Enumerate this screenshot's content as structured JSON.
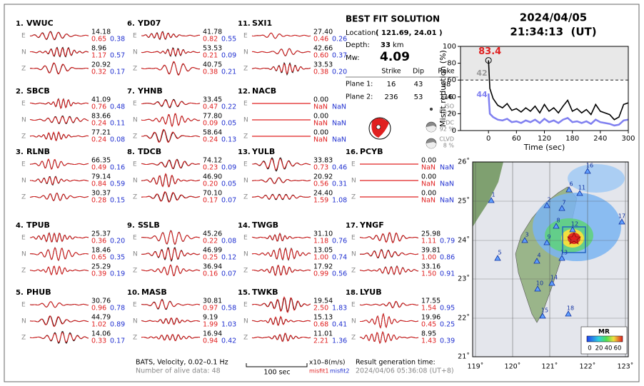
{
  "stations": [
    {
      "number": "1.",
      "name": "VWUC",
      "components": [
        {
          "comp": "E",
          "amp": "14.18",
          "misfit1": "0.65",
          "misfit2": "0.38"
        },
        {
          "comp": "N",
          "amp": "8.96",
          "misfit1": "1.17",
          "misfit2": "0.57"
        },
        {
          "comp": "Z",
          "amp": "20.92",
          "misfit1": "0.32",
          "misfit2": "0.17"
        }
      ]
    },
    {
      "number": "2.",
      "name": "SBCB",
      "components": [
        {
          "comp": "E",
          "amp": "41.09",
          "misfit1": "0.76",
          "misfit2": "0.48"
        },
        {
          "comp": "N",
          "amp": "83.66",
          "misfit1": "0.24",
          "misfit2": "0.11"
        },
        {
          "comp": "Z",
          "amp": "77.21",
          "misfit1": "0.24",
          "misfit2": "0.08"
        }
      ]
    },
    {
      "number": "3.",
      "name": "RLNB",
      "components": [
        {
          "comp": "E",
          "amp": "66.35",
          "misfit1": "0.49",
          "misfit2": "0.16"
        },
        {
          "comp": "N",
          "amp": "79.14",
          "misfit1": "0.84",
          "misfit2": "0.59"
        },
        {
          "comp": "Z",
          "amp": "30.37",
          "misfit1": "0.28",
          "misfit2": "0.15"
        }
      ]
    },
    {
      "number": "4.",
      "name": "TPUB",
      "components": [
        {
          "comp": "E",
          "amp": "25.37",
          "misfit1": "0.36",
          "misfit2": "0.20"
        },
        {
          "comp": "N",
          "amp": "18.46",
          "misfit1": "0.65",
          "misfit2": "0.35"
        },
        {
          "comp": "Z",
          "amp": "25.29",
          "misfit1": "0.39",
          "misfit2": "0.19"
        }
      ]
    },
    {
      "number": "5.",
      "name": "PHUB",
      "components": [
        {
          "comp": "E",
          "amp": "30.76",
          "misfit1": "0.96",
          "misfit2": "0.78"
        },
        {
          "comp": "N",
          "amp": "44.79",
          "misfit1": "1.02",
          "misfit2": "0.89"
        },
        {
          "comp": "Z",
          "amp": "14.06",
          "misfit1": "0.33",
          "misfit2": "0.17"
        }
      ]
    },
    {
      "number": "6.",
      "name": "YD07",
      "components": [
        {
          "comp": "E",
          "amp": "41.78",
          "misfit1": "0.82",
          "misfit2": "0.55"
        },
        {
          "comp": "N",
          "amp": "53.53",
          "misfit1": "0.21",
          "misfit2": "0.09"
        },
        {
          "comp": "Z",
          "amp": "40.75",
          "misfit1": "0.38",
          "misfit2": "0.21"
        }
      ]
    },
    {
      "number": "7.",
      "name": "YHNB",
      "components": [
        {
          "comp": "E",
          "amp": "33.45",
          "misfit1": "0.47",
          "misfit2": "0.22"
        },
        {
          "comp": "N",
          "amp": "77.80",
          "misfit1": "0.09",
          "misfit2": "0.05"
        },
        {
          "comp": "Z",
          "amp": "58.64",
          "misfit1": "0.24",
          "misfit2": "0.13"
        }
      ]
    },
    {
      "number": "8.",
      "name": "TDCB",
      "components": [
        {
          "comp": "E",
          "amp": "74.12",
          "misfit1": "0.23",
          "misfit2": "0.09"
        },
        {
          "comp": "N",
          "amp": "46.90",
          "misfit1": "0.20",
          "misfit2": "0.05"
        },
        {
          "comp": "Z",
          "amp": "70.10",
          "misfit1": "0.17",
          "misfit2": "0.07"
        }
      ]
    },
    {
      "number": "9.",
      "name": "SSLB",
      "components": [
        {
          "comp": "E",
          "amp": "45.26",
          "misfit1": "0.22",
          "misfit2": "0.08"
        },
        {
          "comp": "N",
          "amp": "46.99",
          "misfit1": "0.25",
          "misfit2": "0.12"
        },
        {
          "comp": "Z",
          "amp": "36.94",
          "misfit1": "0.16",
          "misfit2": "0.07"
        }
      ]
    },
    {
      "number": "10.",
      "name": "MASB",
      "components": [
        {
          "comp": "E",
          "amp": "30.81",
          "misfit1": "0.97",
          "misfit2": "0.58"
        },
        {
          "comp": "N",
          "amp": "9.19",
          "misfit1": "1.99",
          "misfit2": "1.03"
        },
        {
          "comp": "Z",
          "amp": "16.94",
          "misfit1": "0.94",
          "misfit2": "0.42"
        }
      ]
    },
    {
      "number": "11.",
      "name": "SXI1",
      "components": [
        {
          "comp": "E",
          "amp": "27.40",
          "misfit1": "0.46",
          "misfit2": "0.26"
        },
        {
          "comp": "N",
          "amp": "42.66",
          "misfit1": "0.60",
          "misfit2": "0.37"
        },
        {
          "comp": "Z",
          "amp": "33.53",
          "misfit1": "0.38",
          "misfit2": "0.20"
        }
      ]
    },
    {
      "number": "12.",
      "name": "NACB",
      "components": [
        {
          "comp": "E",
          "amp": "0.00",
          "misfit1": "NaN",
          "misfit2": "NaN"
        },
        {
          "comp": "N",
          "amp": "0.00",
          "misfit1": "NaN",
          "misfit2": "NaN"
        },
        {
          "comp": "Z",
          "amp": "0.00",
          "misfit1": "NaN",
          "misfit2": "NaN"
        }
      ]
    },
    {
      "number": "13.",
      "name": "YULB",
      "components": [
        {
          "comp": "E",
          "amp": "33.83",
          "misfit1": "0.73",
          "misfit2": "0.46"
        },
        {
          "comp": "N",
          "amp": "20.92",
          "misfit1": "0.56",
          "misfit2": "0.31"
        },
        {
          "comp": "Z",
          "amp": "24.40",
          "misfit1": "1.59",
          "misfit2": "1.08"
        }
      ]
    },
    {
      "number": "14.",
      "name": "TWGB",
      "components": [
        {
          "comp": "E",
          "amp": "31.10",
          "misfit1": "1.18",
          "misfit2": "0.76"
        },
        {
          "comp": "N",
          "amp": "13.05",
          "misfit1": "1.00",
          "misfit2": "0.74"
        },
        {
          "comp": "Z",
          "amp": "17.92",
          "misfit1": "0.99",
          "misfit2": "0.56"
        }
      ]
    },
    {
      "number": "15.",
      "name": "TWKB",
      "components": [
        {
          "comp": "E",
          "amp": "19.54",
          "misfit1": "2.50",
          "misfit2": "1.83"
        },
        {
          "comp": "N",
          "amp": "15.13",
          "misfit1": "0.68",
          "misfit2": "0.41"
        },
        {
          "comp": "Z",
          "amp": "11.01",
          "misfit1": "2.21",
          "misfit2": "1.36"
        }
      ]
    },
    {
      "number": "16.",
      "name": "PCYB",
      "components": [
        {
          "comp": "E",
          "amp": "0.00",
          "misfit1": "NaN",
          "misfit2": "NaN"
        },
        {
          "comp": "N",
          "amp": "0.00",
          "misfit1": "NaN",
          "misfit2": "NaN"
        },
        {
          "comp": "Z",
          "amp": "0.00",
          "misfit1": "NaN",
          "misfit2": "NaN"
        }
      ]
    },
    {
      "number": "17.",
      "name": "YNGF",
      "components": [
        {
          "comp": "E",
          "amp": "25.98",
          "misfit1": "1.11",
          "misfit2": "0.79"
        },
        {
          "comp": "N",
          "amp": "39.81",
          "misfit1": "1.00",
          "misfit2": "0.86"
        },
        {
          "comp": "Z",
          "amp": "33.16",
          "misfit1": "1.50",
          "misfit2": "0.91"
        }
      ]
    },
    {
      "number": "18.",
      "name": "LYUB",
      "components": [
        {
          "comp": "E",
          "amp": "17.55",
          "misfit1": "1.54",
          "misfit2": "0.95"
        },
        {
          "comp": "N",
          "amp": "19.96",
          "misfit1": "0.45",
          "misfit2": "0.25"
        },
        {
          "comp": "Z",
          "amp": "8.95",
          "misfit1": "1.43",
          "misfit2": "0.39"
        }
      ]
    }
  ],
  "solution": {
    "title": "BEST FIT SOLUTION",
    "location_label": "Location",
    "location": "( 121.69, 24.01 )",
    "depth_label": "Depth:",
    "depth": "33",
    "depth_unit": "km",
    "mw_label": "Mw:",
    "mw": "4.09",
    "headers": [
      "Strike",
      "Dip",
      "Rake"
    ],
    "planes": [
      {
        "label": "Plane 1:",
        "values": [
          "16",
          "43",
          "58"
        ]
      },
      {
        "label": "Plane 2:",
        "values": [
          "236",
          "53",
          "116"
        ]
      }
    ],
    "components": [
      {
        "name": "ISO",
        "value": "0 %"
      },
      {
        "name": "DC",
        "value": "92 %"
      },
      {
        "name": "CLVD",
        "value": "8 %"
      }
    ]
  },
  "origin": {
    "date": "2024/04/05",
    "time": "21:34:13  (UT)"
  },
  "chart_data": {
    "type": "line",
    "ylabel": "Misfit reduction (%)",
    "xlabel": "Time (sec)",
    "x": [
      0,
      3,
      10,
      20,
      30,
      40,
      50,
      60,
      70,
      80,
      90,
      100,
      110,
      120,
      130,
      140,
      150,
      160,
      170,
      180,
      190,
      200,
      210,
      220,
      230,
      240,
      250,
      260,
      270,
      280,
      290,
      300
    ],
    "series": [
      {
        "color": "#000000",
        "values": [
          83.4,
          50,
          38,
          30,
          27,
          32,
          24,
          26,
          22,
          27,
          23,
          29,
          21,
          31,
          23,
          27,
          21,
          29,
          36,
          23,
          26,
          21,
          25,
          19,
          31,
          23,
          21,
          19,
          13,
          16,
          31,
          33
        ]
      },
      {
        "color": "#8080f0",
        "values": [
          44,
          20,
          16,
          13,
          12,
          14,
          10,
          11,
          9,
          12,
          10,
          13,
          9,
          14,
          10,
          12,
          9,
          13,
          15,
          10,
          11,
          9,
          11,
          8,
          13,
          10,
          9,
          8,
          6,
          7,
          12,
          13
        ]
      }
    ],
    "annotations": [
      {
        "text": "83.4",
        "color": "#e02020"
      },
      {
        "text": "42",
        "color": "#999999"
      },
      {
        "text": "44",
        "color": "#8080f0"
      }
    ],
    "reference_line": 60,
    "xlim": [
      -60,
      300
    ],
    "ylim": [
      0,
      100
    ],
    "xticks": [
      0,
      60,
      120,
      180,
      240,
      300
    ],
    "yticks": [
      0,
      20,
      40,
      60,
      80,
      100
    ]
  },
  "map": {
    "lon_ticks": [
      "119˚",
      "120˚",
      "121˚",
      "122˚",
      "123˚"
    ],
    "lat_ticks": [
      "26˚",
      "25˚",
      "24˚",
      "23˚",
      "22˚",
      "21˚"
    ],
    "station_labels": [
      "1",
      "2",
      "3",
      "4",
      "5",
      "6",
      "7",
      "8",
      "9",
      "10",
      "11",
      "12",
      "13",
      "14",
      "15",
      "16",
      "17",
      "18"
    ],
    "colorbar_title": "MR",
    "colorbar_ticks": [
      "0",
      "20",
      "40",
      "60"
    ]
  },
  "footer": {
    "filter": "BATS, Velocity, 0.02–0.1 Hz",
    "alive": "Number of alive data: 48",
    "scale": "100 sec",
    "unit": "x10–8(m/s)",
    "misfit1": "misfit1",
    "misfit2": "misfit2",
    "gen_label": "Result generation time:",
    "gen_time": "2024/04/06 05:36:08 (UT+8)"
  }
}
